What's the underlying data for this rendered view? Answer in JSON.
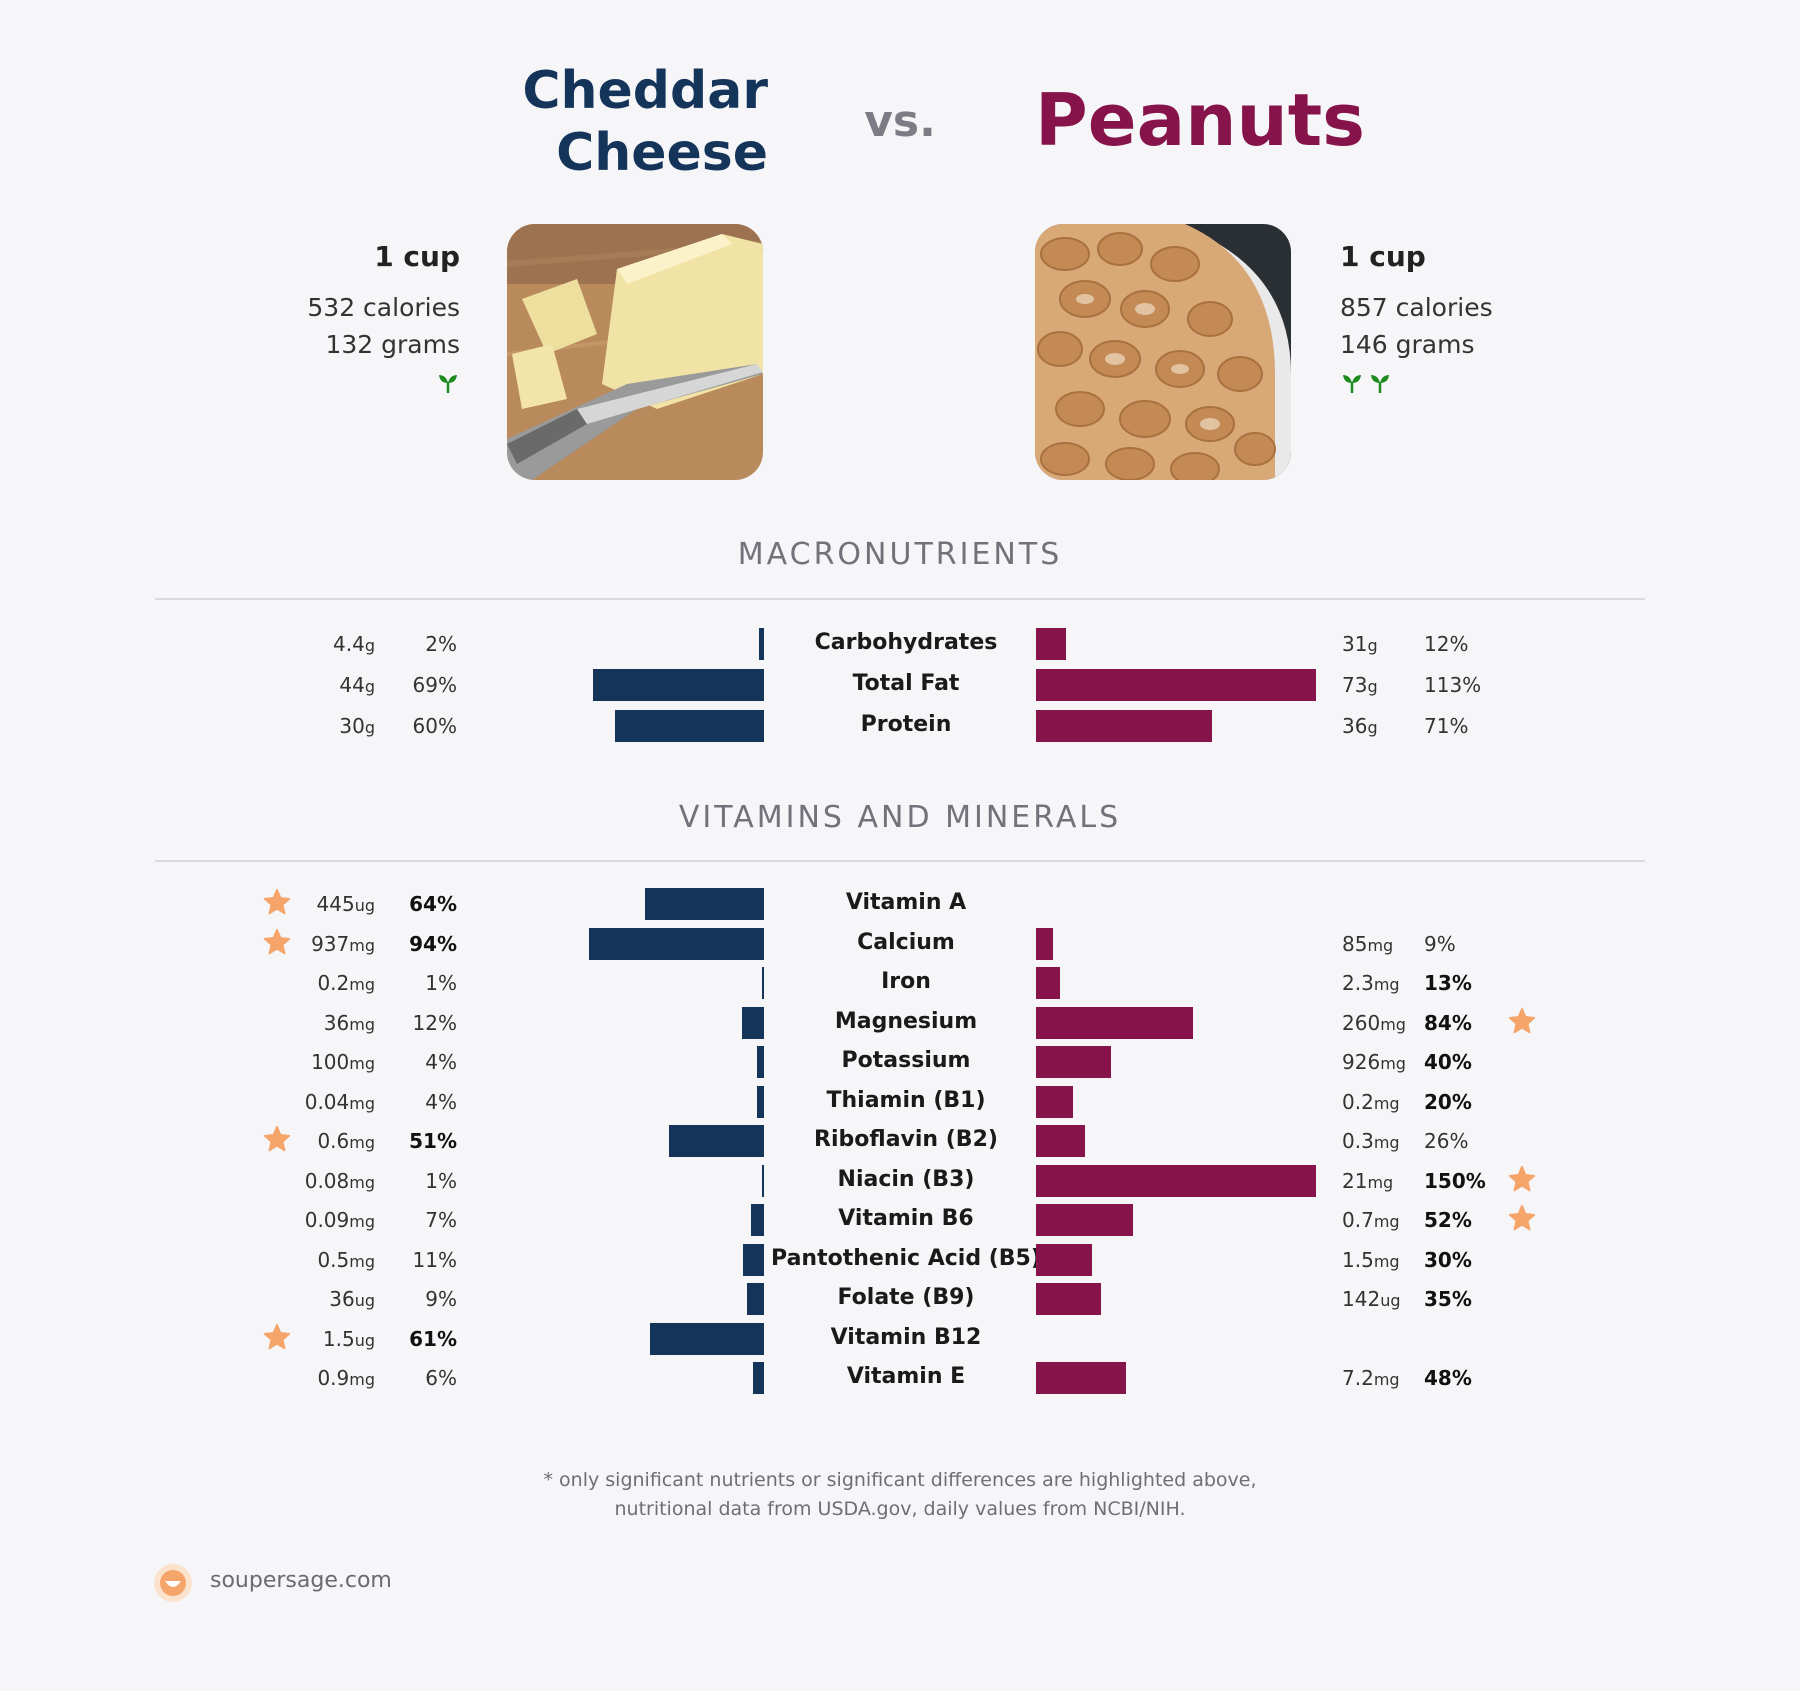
{
  "header": {
    "left_title_line1": "Cheddar",
    "left_title_line2": "Cheese",
    "vs": "vs.",
    "right_title": "Peanuts"
  },
  "left_food": {
    "serving": "1 cup",
    "calories": "532 calories",
    "grams": "132 grams",
    "sprout_count": 1,
    "sprout_color": "#1f8a1f"
  },
  "right_food": {
    "serving": "1 cup",
    "calories": "857 calories",
    "grams": "146 grams",
    "sprout_count": 2,
    "sprout_color": "#1f8a1f"
  },
  "sections": {
    "macro_title": "MACRONUTRIENTS",
    "vitamin_title": "VITAMINS AND MINERALS"
  },
  "colors": {
    "left_bar": "#14345a",
    "right_bar": "#86144a",
    "star": "#f5a46a"
  },
  "chart_data": [
    {
      "type": "bar",
      "title": "MACRONUTRIENTS",
      "max_percent": 113,
      "rows": [
        {
          "label": "Carbohydrates",
          "left": {
            "amount": "4.4",
            "unit": "g",
            "percent": 2,
            "label": "2%",
            "highlight": false
          },
          "right": {
            "amount": "31",
            "unit": "g",
            "percent": 12,
            "label": "12%",
            "highlight": false
          }
        },
        {
          "label": "Total Fat",
          "left": {
            "amount": "44",
            "unit": "g",
            "percent": 69,
            "label": "69%",
            "highlight": false
          },
          "right": {
            "amount": "73",
            "unit": "g",
            "percent": 113,
            "label": "113%",
            "highlight": false
          }
        },
        {
          "label": "Protein",
          "left": {
            "amount": "30",
            "unit": "g",
            "percent": 60,
            "label": "60%",
            "highlight": false
          },
          "right": {
            "amount": "36",
            "unit": "g",
            "percent": 71,
            "label": "71%",
            "highlight": false
          }
        }
      ]
    },
    {
      "type": "bar",
      "title": "VITAMINS AND MINERALS",
      "max_percent": 150,
      "rows": [
        {
          "label": "Vitamin A",
          "left": {
            "amount": "445",
            "unit": "ug",
            "percent": 64,
            "label": "64%",
            "highlight": true,
            "star": true
          },
          "right": null
        },
        {
          "label": "Calcium",
          "left": {
            "amount": "937",
            "unit": "mg",
            "percent": 94,
            "label": "94%",
            "highlight": true,
            "star": true
          },
          "right": {
            "amount": "85",
            "unit": "mg",
            "percent": 9,
            "label": "9%",
            "highlight": false,
            "star": false
          }
        },
        {
          "label": "Iron",
          "left": {
            "amount": "0.2",
            "unit": "mg",
            "percent": 1,
            "label": "1%",
            "highlight": false,
            "star": false
          },
          "right": {
            "amount": "2.3",
            "unit": "mg",
            "percent": 13,
            "label": "13%",
            "highlight": true,
            "star": false
          }
        },
        {
          "label": "Magnesium",
          "left": {
            "amount": "36",
            "unit": "mg",
            "percent": 12,
            "label": "12%",
            "highlight": false,
            "star": false
          },
          "right": {
            "amount": "260",
            "unit": "mg",
            "percent": 84,
            "label": "84%",
            "highlight": true,
            "star": true
          }
        },
        {
          "label": "Potassium",
          "left": {
            "amount": "100",
            "unit": "mg",
            "percent": 4,
            "label": "4%",
            "highlight": false,
            "star": false
          },
          "right": {
            "amount": "926",
            "unit": "mg",
            "percent": 40,
            "label": "40%",
            "highlight": true,
            "star": false
          }
        },
        {
          "label": "Thiamin (B1)",
          "left": {
            "amount": "0.04",
            "unit": "mg",
            "percent": 4,
            "label": "4%",
            "highlight": false,
            "star": false
          },
          "right": {
            "amount": "0.2",
            "unit": "mg",
            "percent": 20,
            "label": "20%",
            "highlight": true,
            "star": false
          }
        },
        {
          "label": "Riboflavin (B2)",
          "left": {
            "amount": "0.6",
            "unit": "mg",
            "percent": 51,
            "label": "51%",
            "highlight": true,
            "star": true
          },
          "right": {
            "amount": "0.3",
            "unit": "mg",
            "percent": 26,
            "label": "26%",
            "highlight": false,
            "star": false
          }
        },
        {
          "label": "Niacin (B3)",
          "left": {
            "amount": "0.08",
            "unit": "mg",
            "percent": 1,
            "label": "1%",
            "highlight": false,
            "star": false
          },
          "right": {
            "amount": "21",
            "unit": "mg",
            "percent": 150,
            "label": "150%",
            "highlight": true,
            "star": true
          }
        },
        {
          "label": "Vitamin B6",
          "left": {
            "amount": "0.09",
            "unit": "mg",
            "percent": 7,
            "label": "7%",
            "highlight": false,
            "star": false
          },
          "right": {
            "amount": "0.7",
            "unit": "mg",
            "percent": 52,
            "label": "52%",
            "highlight": true,
            "star": true
          }
        },
        {
          "label": "Pantothenic Acid (B5)",
          "left": {
            "amount": "0.5",
            "unit": "mg",
            "percent": 11,
            "label": "11%",
            "highlight": false,
            "star": false
          },
          "right": {
            "amount": "1.5",
            "unit": "mg",
            "percent": 30,
            "label": "30%",
            "highlight": true,
            "star": false
          }
        },
        {
          "label": "Folate (B9)",
          "left": {
            "amount": "36",
            "unit": "ug",
            "percent": 9,
            "label": "9%",
            "highlight": false,
            "star": false
          },
          "right": {
            "amount": "142",
            "unit": "ug",
            "percent": 35,
            "label": "35%",
            "highlight": true,
            "star": false
          }
        },
        {
          "label": "Vitamin B12",
          "left": {
            "amount": "1.5",
            "unit": "ug",
            "percent": 61,
            "label": "61%",
            "highlight": true,
            "star": true
          },
          "right": null
        },
        {
          "label": "Vitamin E",
          "left": {
            "amount": "0.9",
            "unit": "mg",
            "percent": 6,
            "label": "6%",
            "highlight": false,
            "star": false
          },
          "right": {
            "amount": "7.2",
            "unit": "mg",
            "percent": 48,
            "label": "48%",
            "highlight": true,
            "star": false
          }
        }
      ]
    }
  ],
  "footnote": {
    "line1": "* only significant nutrients or significant differences are highlighted above,",
    "line2": "nutritional data from USDA.gov, daily values from NCBI/NIH."
  },
  "brand": {
    "name": "soupersage.com",
    "logo_icon": "soupersage-logo-icon"
  }
}
